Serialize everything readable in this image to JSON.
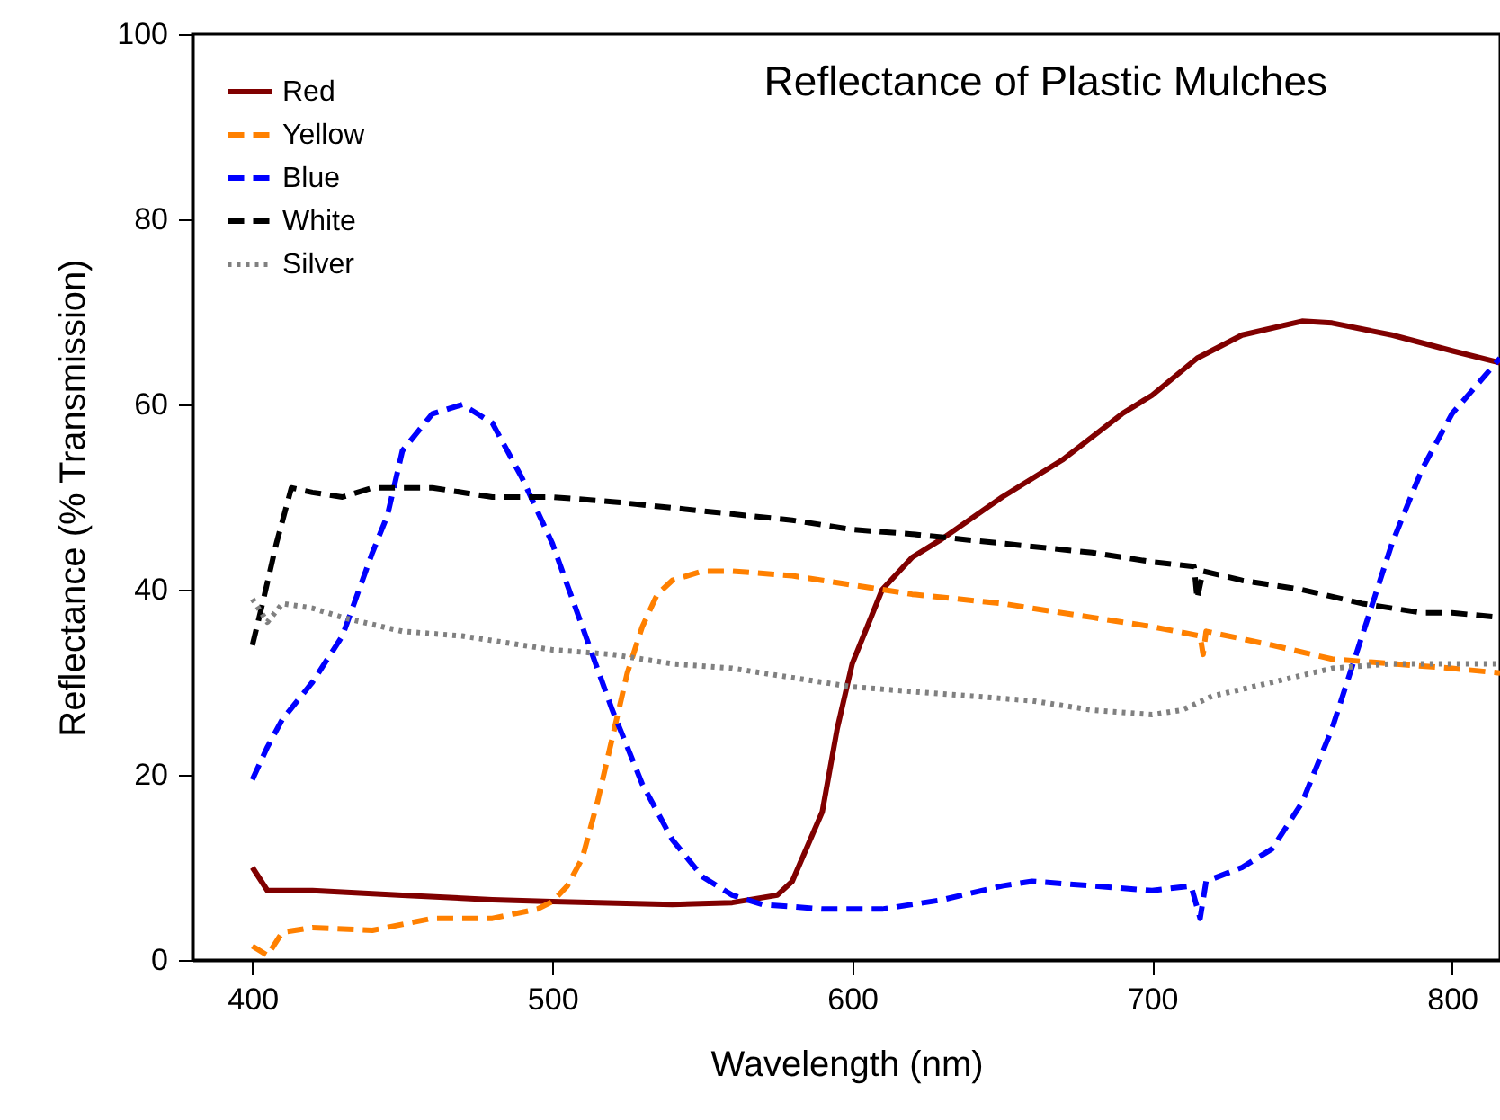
{
  "chart_data": {
    "type": "line",
    "title": "Reflectance of Plastic Mulches",
    "xlabel": "Wavelength (nm)",
    "ylabel": "Reflectance (% Transmission)",
    "xlim": [
      380,
      816
    ],
    "xticks": [
      400,
      500,
      600,
      700,
      800
    ],
    "ylim": [
      0,
      100
    ],
    "yticks": [
      0,
      20,
      40,
      60,
      80,
      100
    ],
    "grid": false,
    "legend": "top left",
    "marker": "none",
    "series": [
      {
        "name": "Red",
        "color": "#800000",
        "line_style": "solid",
        "x": [
          400,
          405,
          420,
          450,
          480,
          500,
          540,
          560,
          575,
          580,
          590,
          595,
          600,
          610,
          620,
          630,
          650,
          670,
          690,
          700,
          715,
          730,
          750,
          760,
          780,
          800,
          816
        ],
        "values": [
          10,
          7.5,
          7.5,
          7,
          6.5,
          6.3,
          6,
          6.2,
          7,
          8.5,
          16,
          25,
          32,
          40,
          43.5,
          45.5,
          50,
          54,
          59,
          61,
          65,
          67.5,
          69,
          68.8,
          67.5,
          65.8,
          64.5
        ]
      },
      {
        "name": "Yellow",
        "color": "#ff8000",
        "line_style": "dashed",
        "x": [
          400,
          405,
          410,
          420,
          440,
          460,
          480,
          495,
          500,
          505,
          510,
          515,
          520,
          525,
          530,
          535,
          540,
          550,
          560,
          580,
          600,
          620,
          650,
          680,
          700,
          716,
          717,
          718,
          740,
          760,
          780,
          800,
          816
        ],
        "values": [
          1.5,
          0.5,
          3,
          3.5,
          3.2,
          4.5,
          4.5,
          5.5,
          6.3,
          8,
          11,
          17,
          24,
          31,
          36,
          39.5,
          41,
          42,
          42,
          41.5,
          40.5,
          39.5,
          38.5,
          37,
          36,
          35,
          33,
          35.5,
          34,
          32.5,
          32,
          31.5,
          31
        ]
      },
      {
        "name": "Blue",
        "color": "#0000ff",
        "line_style": "dashed",
        "x": [
          400,
          405,
          410,
          420,
          430,
          440,
          445,
          450,
          455,
          460,
          470,
          480,
          490,
          500,
          510,
          520,
          530,
          540,
          550,
          560,
          570,
          590,
          610,
          630,
          650,
          660,
          680,
          700,
          713,
          716,
          718,
          730,
          740,
          750,
          760,
          770,
          780,
          790,
          800,
          816
        ],
        "values": [
          19.5,
          23,
          26,
          30,
          35,
          44,
          48,
          55,
          57,
          59,
          60,
          58,
          52,
          45,
          36,
          27,
          19,
          13,
          9,
          7,
          6,
          5.5,
          5.5,
          6.5,
          8,
          8.5,
          8,
          7.5,
          8,
          4.5,
          8.5,
          10,
          12,
          17,
          25,
          35,
          45,
          53,
          59,
          65
        ]
      },
      {
        "name": "White",
        "color": "#000000",
        "line_style": "dashed",
        "x": [
          400,
          403,
          408,
          413,
          420,
          430,
          440,
          460,
          480,
          500,
          520,
          550,
          580,
          600,
          620,
          650,
          680,
          700,
          714,
          715,
          717,
          730,
          750,
          770,
          790,
          800,
          816
        ],
        "values": [
          34,
          38,
          45,
          51,
          50.5,
          50,
          51,
          51,
          50,
          50,
          49.5,
          48.5,
          47.5,
          46.5,
          46,
          45,
          44,
          43,
          42.5,
          39,
          42,
          41,
          40,
          38.5,
          37.5,
          37.5,
          37
        ]
      },
      {
        "name": "Silver",
        "color": "#808080",
        "line_style": "dotted",
        "x": [
          400,
          405,
          410,
          420,
          430,
          450,
          470,
          500,
          520,
          540,
          560,
          580,
          600,
          620,
          640,
          660,
          680,
          700,
          710,
          720,
          740,
          760,
          780,
          800,
          816
        ],
        "values": [
          39,
          36.5,
          38.5,
          38,
          37,
          35.5,
          35,
          33.5,
          33,
          32,
          31.5,
          30.5,
          29.5,
          29,
          28.5,
          28,
          27,
          26.5,
          27,
          28.5,
          30,
          31.5,
          32,
          32,
          32
        ]
      }
    ]
  }
}
